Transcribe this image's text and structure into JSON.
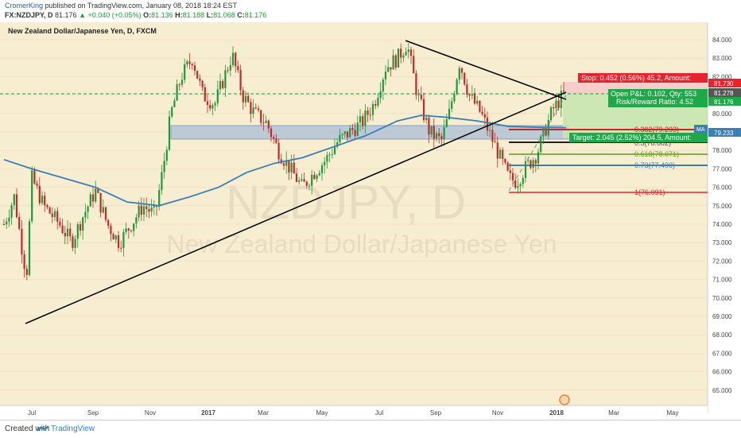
{
  "header": {
    "author": "CromerKing",
    "published_text": "published on TradingView.com, January 08, 2018 18:24 EST",
    "symbol": "FX:NZDJPY, D",
    "last": "81.176",
    "change": "+0.040 (+0.05%)",
    "o_label": "O:",
    "o_val": "81.136",
    "h_label": "H:",
    "h_val": "81.188",
    "l_label": "L:",
    "l_val": "81.068",
    "c_label": "C:",
    "c_val": "81.176"
  },
  "chart_title": "New Zealand Dollar/Japanese Yen, D, FXCM",
  "watermark": {
    "line1": "NZDJPY, D",
    "line2": "New Zealand Dollar/Japanese Yen"
  },
  "y_ticks": [
    "84.000",
    "83.000",
    "82.000",
    "81.000",
    "80.000",
    "79.000",
    "78.000",
    "77.000",
    "76.000",
    "75.000",
    "74.000",
    "73.000",
    "72.000",
    "71.000",
    "70.000",
    "69.000",
    "68.000",
    "67.000",
    "66.000",
    "65.000"
  ],
  "x_ticks": [
    "Jul",
    "Sep",
    "Nov",
    "2017",
    "Mar",
    "May",
    "Jul",
    "Sep",
    "Nov",
    "2018",
    "Mar",
    "May"
  ],
  "price_tags": {
    "stop_price": "81.730",
    "last_price": "81.278",
    "current": "81.176",
    "ma_label": "MA",
    "ma_price": "79.233"
  },
  "position": {
    "stop": "Stop: 0.452 (0.56%) 45.2, Amount:",
    "open_pl": "Open P&L: 0.102, Qty: 553",
    "rr": "Risk/Reward Ratio: 4.52",
    "target": "Target: 2.045 (2.52%) 204.5, Amount:"
  },
  "fib": {
    "f382": "0.382(79.293)",
    "f5": "0.5(78.682)",
    "f618": "0.618(78.071)",
    "f73": "0.73(77.490)",
    "f1": "1(76.091)"
  },
  "colors": {
    "bg": "#f7edd0",
    "bull": "#1d9a3a",
    "bear": "#c62828",
    "ma": "#3a7fb5",
    "stop": "#e8232d",
    "target": "#1ea84a"
  },
  "footer": {
    "created": "Created with",
    "brand": "TradingView"
  },
  "chart_data": {
    "type": "line",
    "title": "New Zealand Dollar/Japanese Yen, D, FXCM",
    "x": [
      "Jul",
      "Sep",
      "Nov",
      "2017",
      "Mar",
      "May",
      "Jul",
      "Sep",
      "Nov",
      "2018"
    ],
    "series": [
      {
        "values": [
          72.0,
          75.0,
          74.5,
          82.5,
          79.0,
          76.0,
          83.5,
          80.5,
          76.5,
          81.176
        ]
      }
    ],
    "ylim": [
      65,
      84.5
    ],
    "annotations": [
      "0.382(79.293)",
      "0.5(78.682)",
      "0.618(78.071)",
      "0.73(77.490)",
      "1(76.091)"
    ]
  }
}
